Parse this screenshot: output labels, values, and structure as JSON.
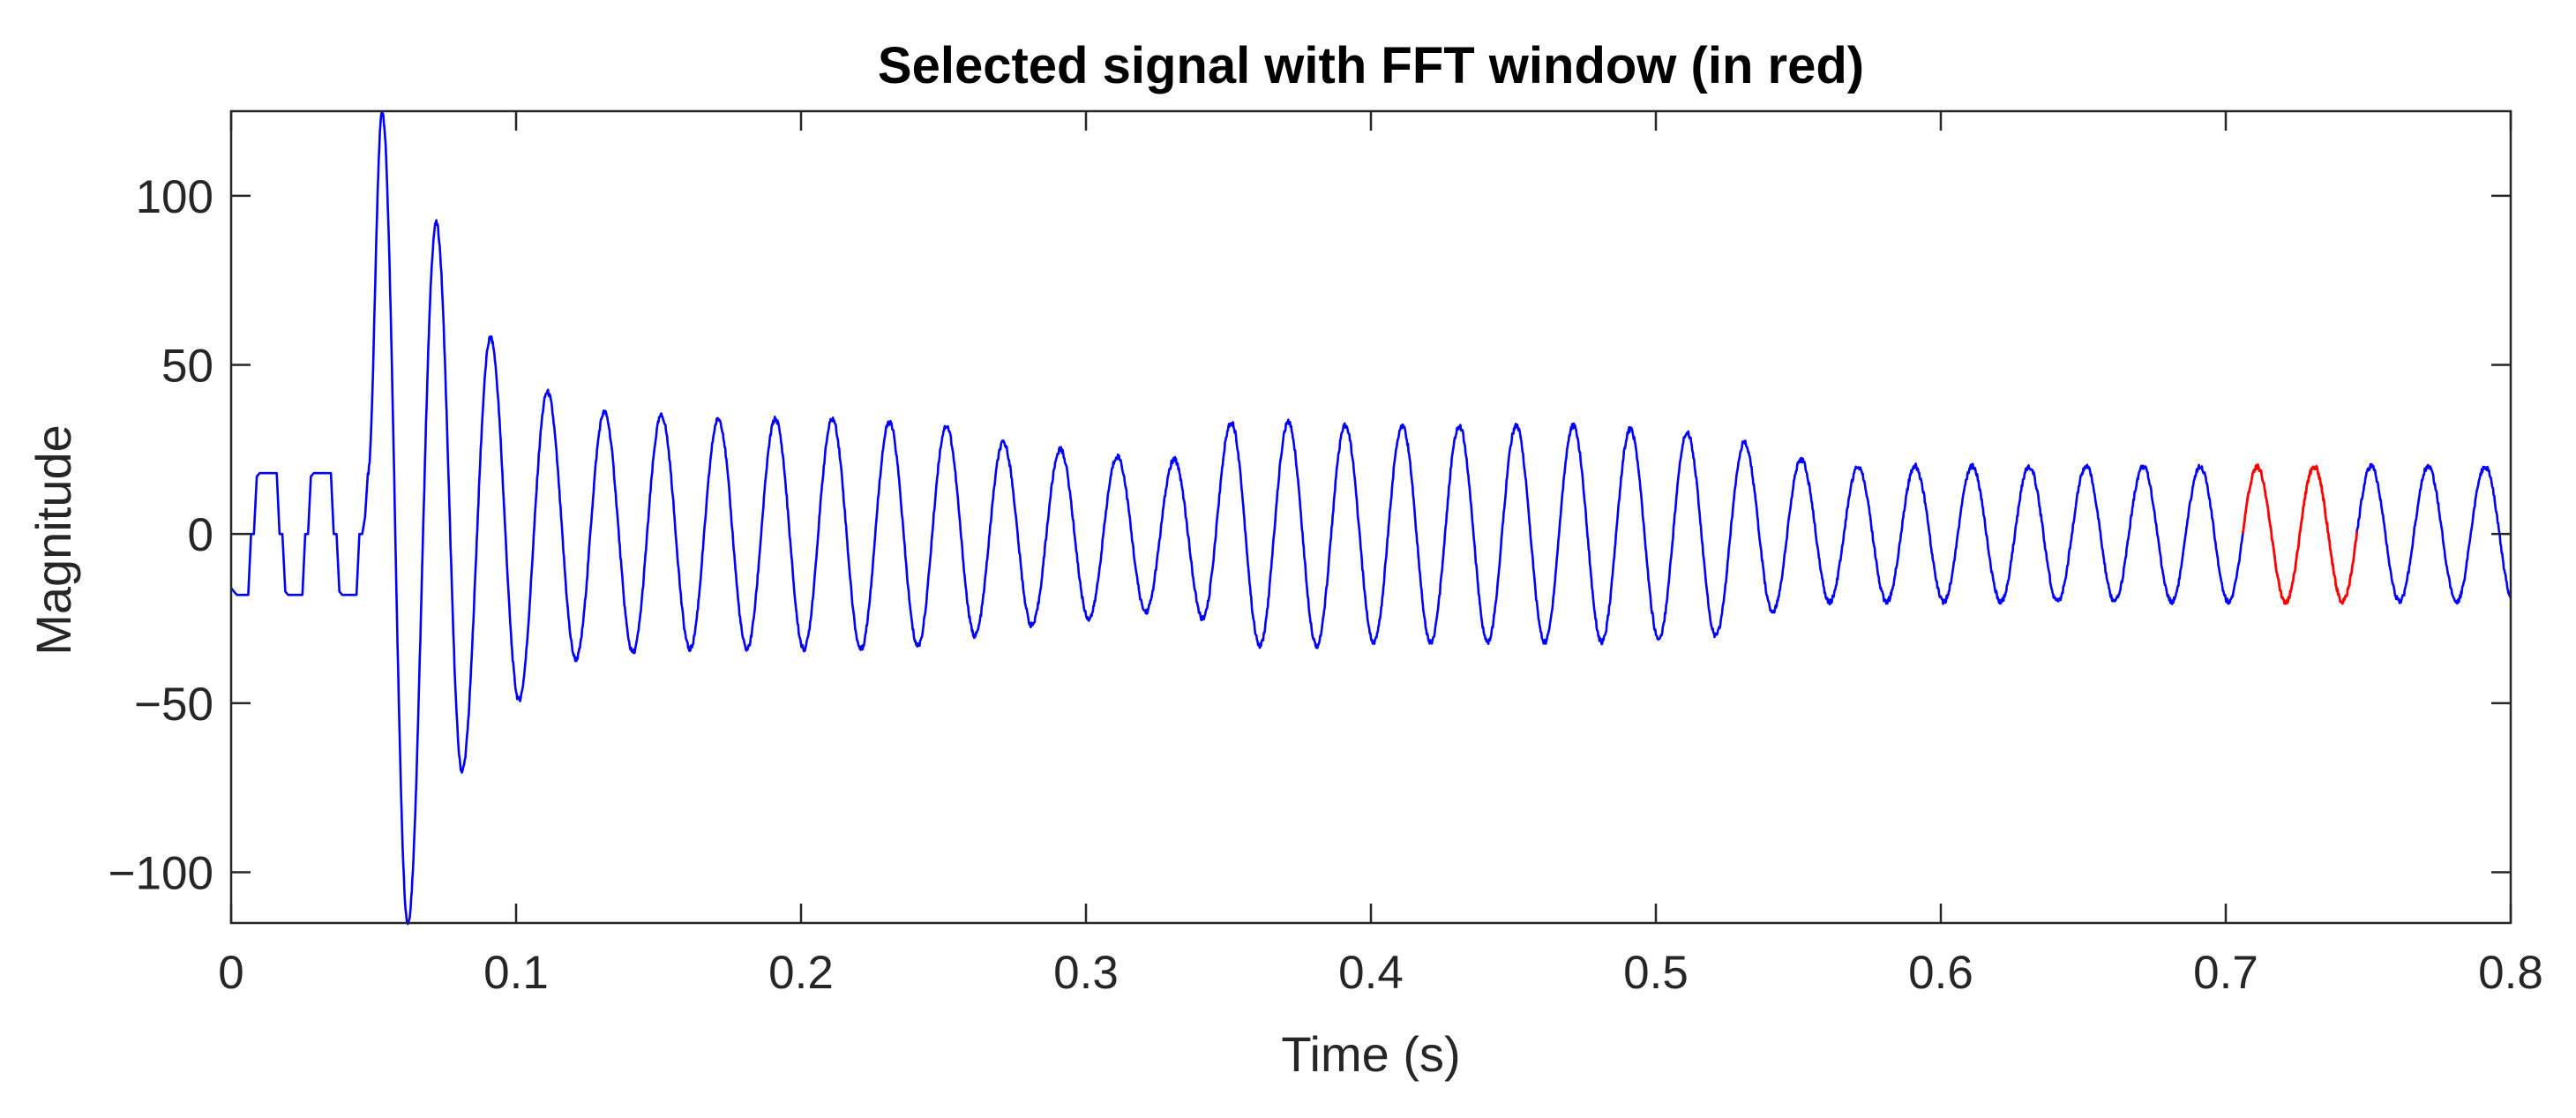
{
  "chart_data": {
    "type": "line",
    "title": "Selected signal with FFT window (in red)",
    "xlabel": "Time (s)",
    "ylabel": "Magnitude",
    "xlim": [
      0,
      0.8
    ],
    "ylim": [
      -115,
      125
    ],
    "xticks": [
      0,
      0.1,
      0.2,
      0.3,
      0.4,
      0.5,
      0.6,
      0.7,
      0.8
    ],
    "xtick_labels": [
      "0",
      "0.1",
      "0.2",
      "0.3",
      "0.4",
      "0.5",
      "0.6",
      "0.7",
      "0.8"
    ],
    "yticks": [
      -100,
      -50,
      0,
      50,
      100
    ],
    "ytick_labels": [
      "−100",
      "−50",
      "0",
      "50",
      "100"
    ],
    "grid": false,
    "signal_frequency_hz": 50,
    "series": [
      {
        "role": "signal",
        "color": "#0000ff",
        "t_range": [
          0,
          0.8
        ],
        "pre_fault_square": {
          "t_range": [
            0,
            0.048
          ],
          "levels": [
            0,
            -18,
            18
          ]
        },
        "cycles": [
          {
            "t_max": 0.053,
            "max": 125,
            "t_min": 0.062,
            "min": -115
          },
          {
            "t_max": 0.072,
            "max": 92,
            "t_min": 0.081,
            "min": -70
          },
          {
            "t_max": 0.091,
            "max": 58,
            "t_min": 0.101,
            "min": -49
          },
          {
            "t_max": 0.111,
            "max": 42,
            "t_min": 0.121,
            "min": -37
          },
          {
            "t_max": 0.131,
            "max": 36,
            "t_min": 0.141,
            "min": -35
          },
          {
            "t_max": 0.151,
            "max": 35,
            "t_min": 0.161,
            "min": -34
          },
          {
            "t_max": 0.171,
            "max": 34,
            "t_min": 0.181,
            "min": -34
          },
          {
            "t_max": 0.191,
            "max": 34,
            "t_min": 0.201,
            "min": -34
          },
          {
            "t_max": 0.211,
            "max": 34,
            "t_min": 0.221,
            "min": -34
          },
          {
            "t_max": 0.231,
            "max": 33,
            "t_min": 0.241,
            "min": -33
          },
          {
            "t_max": 0.251,
            "max": 32,
            "t_min": 0.261,
            "min": -30
          },
          {
            "t_max": 0.271,
            "max": 27,
            "t_min": 0.281,
            "min": -27
          },
          {
            "t_max": 0.291,
            "max": 25,
            "t_min": 0.301,
            "min": -25
          },
          {
            "t_max": 0.311,
            "max": 23,
            "t_min": 0.321,
            "min": -23
          },
          {
            "t_max": 0.331,
            "max": 22,
            "t_min": 0.341,
            "min": -25
          },
          {
            "t_max": 0.351,
            "max": 33,
            "t_min": 0.361,
            "min": -33
          },
          {
            "t_max": 0.371,
            "max": 33,
            "t_min": 0.381,
            "min": -33
          },
          {
            "t_max": 0.391,
            "max": 32,
            "t_min": 0.401,
            "min": -32
          },
          {
            "t_max": 0.411,
            "max": 32,
            "t_min": 0.421,
            "min": -32
          },
          {
            "t_max": 0.431,
            "max": 32,
            "t_min": 0.441,
            "min": -32
          },
          {
            "t_max": 0.451,
            "max": 32,
            "t_min": 0.461,
            "min": -32
          },
          {
            "t_max": 0.471,
            "max": 32,
            "t_min": 0.481,
            "min": -32
          },
          {
            "t_max": 0.491,
            "max": 31,
            "t_min": 0.501,
            "min": -31
          },
          {
            "t_max": 0.511,
            "max": 30,
            "t_min": 0.521,
            "min": -30
          },
          {
            "t_max": 0.531,
            "max": 27,
            "t_min": 0.541,
            "min": -23
          },
          {
            "t_max": 0.551,
            "max": 22,
            "t_min": 0.561,
            "min": -20
          },
          {
            "t_max": 0.571,
            "max": 20,
            "t_min": 0.581,
            "min": -20
          },
          {
            "t_max": 0.591,
            "max": 20,
            "t_min": 0.601,
            "min": -20
          },
          {
            "t_max": 0.611,
            "max": 20,
            "t_min": 0.621,
            "min": -20
          },
          {
            "t_max": 0.631,
            "max": 20,
            "t_min": 0.641,
            "min": -20
          },
          {
            "t_max": 0.651,
            "max": 20,
            "t_min": 0.661,
            "min": -20
          },
          {
            "t_max": 0.671,
            "max": 20,
            "t_min": 0.681,
            "min": -20
          },
          {
            "t_max": 0.691,
            "max": 20,
            "t_min": 0.701,
            "min": -20
          },
          {
            "t_max": 0.711,
            "max": 20,
            "t_min": 0.721,
            "min": -20
          },
          {
            "t_max": 0.731,
            "max": 20,
            "t_min": 0.741,
            "min": -20
          },
          {
            "t_max": 0.751,
            "max": 20,
            "t_min": 0.761,
            "min": -20
          },
          {
            "t_max": 0.771,
            "max": 20,
            "t_min": 0.781,
            "min": -20
          },
          {
            "t_max": 0.791,
            "max": 20,
            "t_min": 0.801,
            "min": -20
          }
        ]
      },
      {
        "role": "fft-window",
        "color": "#ff0000",
        "t_range": [
          0.706,
          0.746
        ]
      }
    ]
  }
}
